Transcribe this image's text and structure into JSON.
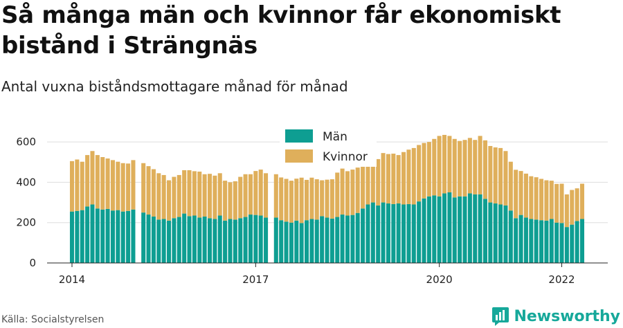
{
  "header": {
    "title": "Så många män och kvinnor får ekonomiskt bistånd i Strängnäs",
    "subtitle": "Antal vuxna biståndsmottagare månad för månad"
  },
  "footer": {
    "source": "Källa: Socialstyrelsen",
    "brand": "Newsworthy"
  },
  "colors": {
    "man": "#0e9e92",
    "kvinnor": "#dfaf5b",
    "grid": "#dddddd",
    "brand": "#16a89a"
  },
  "chart_data": {
    "type": "bar",
    "stacked": true,
    "ylim": [
      0,
      700
    ],
    "yticks": [
      0,
      200,
      400,
      600
    ],
    "xticks": [
      "2014",
      "2017",
      "2020",
      "2022"
    ],
    "legend_position": "top-center",
    "grid": true,
    "series": [
      {
        "name": "Män",
        "segments": [
          {
            "start": "2014-01",
            "values": [
              255,
              258,
              262,
              280,
              290,
              270,
              265,
              268,
              260,
              262,
              255,
              258,
              265
            ]
          },
          {
            "start": "2015-03",
            "values": [
              250,
              240,
              230,
              215,
              218,
              210,
              222,
              228,
              245,
              232,
              235,
              225,
              230,
              222,
              218,
              235,
              210,
              218,
              215,
              222,
              228,
              240,
              238,
              235,
              225
            ]
          },
          {
            "start": "2017-05",
            "values": [
              225,
              212,
              205,
              200,
              210,
              198,
              212,
              218,
              215,
              232,
              225,
              220,
              228,
              240,
              235,
              238,
              248,
              270,
              290,
              300,
              285,
              300,
              295,
              292,
              295,
              290,
              292,
              290,
              305,
              320,
              330,
              335,
              330,
              345,
              350,
              325,
              330,
              330,
              345,
              340,
              340,
              318,
              300,
              295,
              290,
              285,
              260,
              222,
              238,
              225,
              218,
              215,
              212,
              210,
              218,
              200,
              198,
              178,
              190,
              208,
              218
            ]
          }
        ]
      },
      {
        "name": "Kvinnor",
        "segments": [
          {
            "start": "2014-01",
            "values": [
              250,
              255,
              240,
              255,
              265,
              265,
              260,
              250,
              250,
              240,
              240,
              235,
              245
            ]
          },
          {
            "start": "2015-03",
            "values": [
              245,
              240,
              235,
              230,
              218,
              200,
              205,
              208,
              215,
              228,
              220,
              228,
              210,
              220,
              215,
              210,
              198,
              182,
              190,
              205,
              212,
              200,
              218,
              228,
              220
            ]
          },
          {
            "start": "2017-05",
            "values": [
              215,
              212,
              212,
              208,
              208,
              225,
              200,
              205,
              200,
              178,
              188,
              195,
              220,
              228,
              220,
              225,
              225,
              210,
              230,
              230,
              230,
              245,
              245,
              250,
              240,
              260,
              270,
              280,
              280,
              275,
              270,
              280,
              300,
              290,
              280,
              290,
              275,
              280,
              275,
              270,
              290,
              290,
              280,
              278,
              280,
              270,
              242,
              240,
              218,
              218,
              212,
              210,
              205,
              200,
              190,
              192,
              195,
              162,
              172,
              162,
              175
            ]
          }
        ]
      }
    ]
  }
}
